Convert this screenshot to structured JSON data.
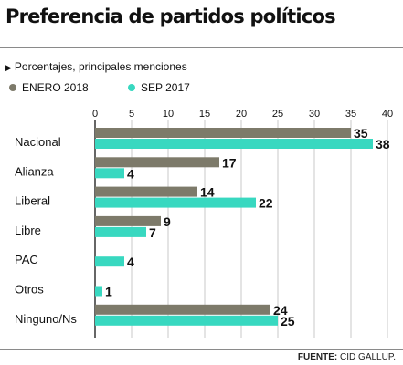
{
  "header": {
    "title": "Preferencia de partidos políticos",
    "subtitle": "Porcentajes, principales menciones"
  },
  "colors": {
    "enero_2018": "#7d7a6a",
    "sep_2017": "#38d8c0",
    "grid": "#c8c8c8",
    "axis": "#333333"
  },
  "footer": {
    "source_label": "FUENTE:",
    "source_name": "CID GALLUP."
  },
  "chart_data": {
    "type": "bar",
    "orientation": "horizontal",
    "title": "Preferencia de partidos políticos",
    "subtitle": "Porcentajes, principales menciones",
    "categories": [
      "Nacional",
      "Alianza",
      "Liberal",
      "Libre",
      "PAC",
      "Otros",
      "Ninguno/Ns"
    ],
    "series": [
      {
        "name": "ENERO 2018",
        "values": [
          35,
          17,
          14,
          9,
          null,
          null,
          24
        ]
      },
      {
        "name": "SEP 2017",
        "values": [
          38,
          4,
          22,
          7,
          4,
          1,
          25
        ]
      }
    ],
    "xlim": [
      0,
      40
    ],
    "xticks": [
      0,
      5,
      10,
      15,
      20,
      25,
      30,
      35,
      40
    ],
    "grid": true,
    "legend_position": "top-left"
  }
}
